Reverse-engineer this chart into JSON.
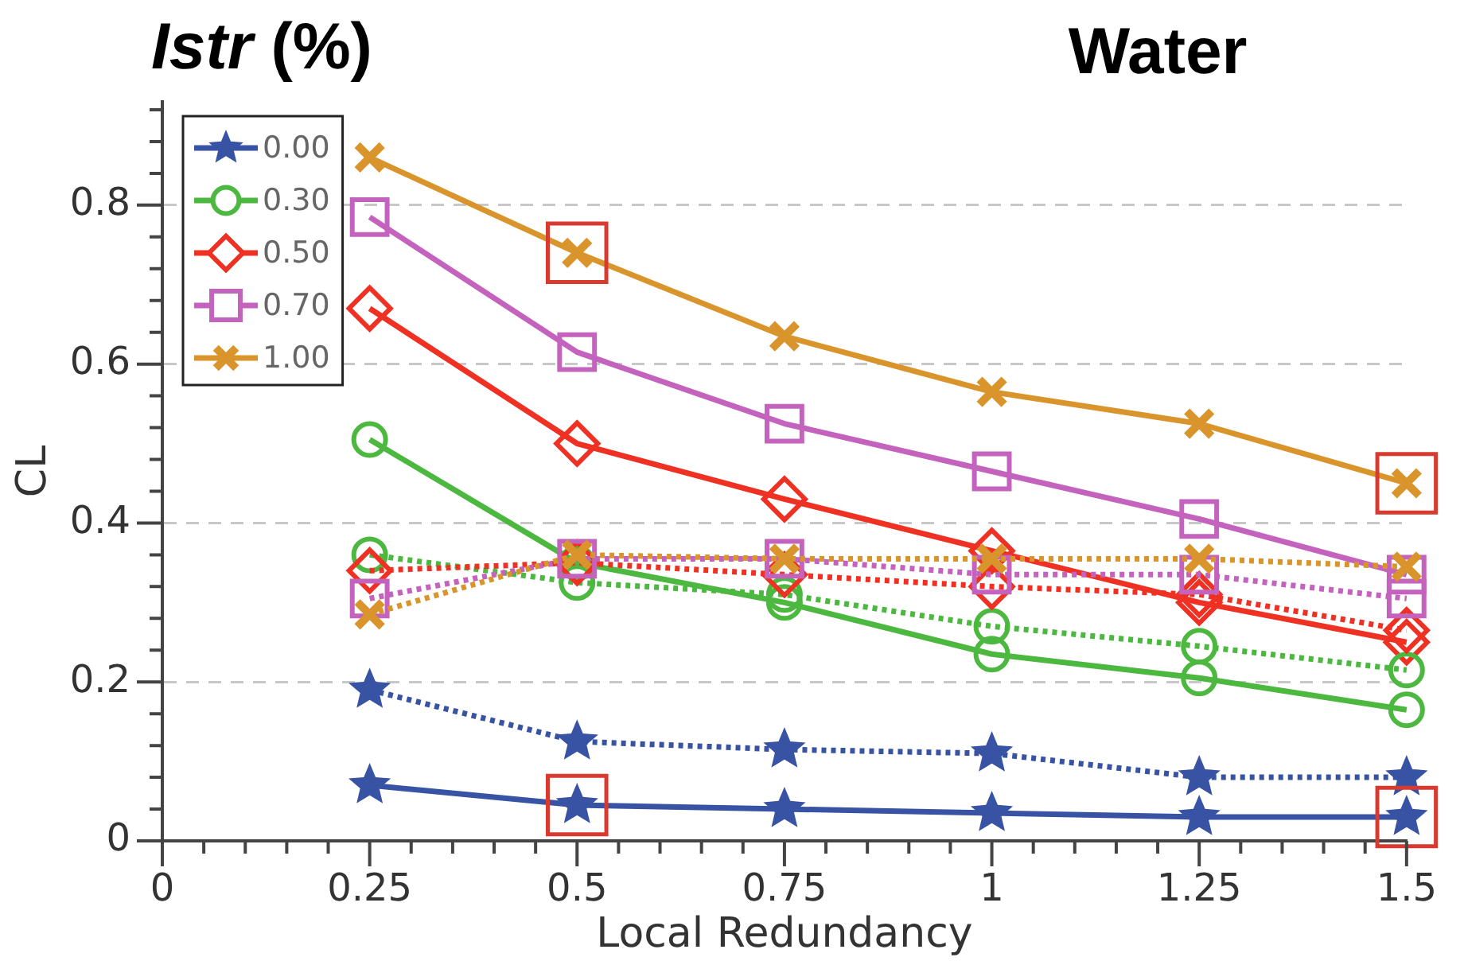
{
  "chart_data": {
    "type": "line",
    "title": "Water",
    "legend_title": "Istr (%)",
    "xlabel": "Local Redundancy",
    "ylabel": "CL",
    "x": [
      0.25,
      0.5,
      0.75,
      1,
      1.25,
      1.5
    ],
    "xlim": [
      0,
      1.5
    ],
    "xticks": [
      0,
      {
        "value": 0.05,
        "label": null
      },
      {
        "value": 0.1,
        "label": null
      },
      {
        "value": 0.15,
        "label": null
      },
      {
        "value": 0.2,
        "label": null
      },
      0.25,
      {
        "value": 0.3,
        "label": null
      },
      {
        "value": 0.35,
        "label": null
      },
      {
        "value": 0.4,
        "label": null
      },
      {
        "value": 0.45,
        "label": null
      },
      0.5,
      {
        "value": 0.55,
        "label": null
      },
      {
        "value": 0.6,
        "label": null
      },
      {
        "value": 0.65,
        "label": null
      },
      {
        "value": 0.7,
        "label": null
      },
      0.75,
      {
        "value": 0.8,
        "label": null
      },
      {
        "value": 0.85,
        "label": null
      },
      {
        "value": 0.9,
        "label": null
      },
      {
        "value": 0.95,
        "label": null
      },
      1,
      {
        "value": 1.05,
        "label": null
      },
      {
        "value": 1.1,
        "label": null
      },
      {
        "value": 1.15,
        "label": null
      },
      {
        "value": 1.2,
        "label": null
      },
      1.25,
      {
        "value": 1.3,
        "label": null
      },
      {
        "value": 1.35,
        "label": null
      },
      {
        "value": 1.4,
        "label": null
      },
      {
        "value": 1.45,
        "label": null
      },
      1.5
    ],
    "ylim": [
      0,
      0.93
    ],
    "yticks": [
      0,
      {
        "value": 0.04,
        "label": null
      },
      {
        "value": 0.08,
        "label": null
      },
      {
        "value": 0.12,
        "label": null
      },
      {
        "value": 0.16,
        "label": null
      },
      0.2,
      {
        "value": 0.24,
        "label": null
      },
      {
        "value": 0.28,
        "label": null
      },
      {
        "value": 0.32,
        "label": null
      },
      {
        "value": 0.36,
        "label": null
      },
      0.4,
      {
        "value": 0.44,
        "label": null
      },
      {
        "value": 0.48,
        "label": null
      },
      {
        "value": 0.52,
        "label": null
      },
      {
        "value": 0.56,
        "label": null
      },
      0.6,
      {
        "value": 0.64,
        "label": null
      },
      {
        "value": 0.68,
        "label": null
      },
      {
        "value": 0.72,
        "label": null
      },
      {
        "value": 0.76,
        "label": null
      },
      0.8,
      {
        "value": 0.84,
        "label": null
      },
      {
        "value": 0.88,
        "label": null
      },
      {
        "value": 0.92,
        "label": null
      }
    ],
    "grid": "y",
    "legend": "top left",
    "series": [
      {
        "name": "0.00",
        "color": "#3953a4",
        "marker": "star",
        "line_style": "solid",
        "values": [
          0.07,
          0.045,
          0.04,
          0.035,
          0.03,
          0.03
        ]
      },
      {
        "name": "0.30",
        "color": "#4cb840",
        "marker": "circle",
        "line_style": "solid",
        "values": [
          0.505,
          0.35,
          0.3,
          0.235,
          0.205,
          0.165
        ]
      },
      {
        "name": "0.50",
        "color": "#ef3124",
        "marker": "diamond",
        "line_style": "solid",
        "values": [
          0.67,
          0.5,
          0.43,
          0.365,
          0.3,
          0.25
        ]
      },
      {
        "name": "0.70",
        "color": "#c463bd",
        "marker": "square",
        "line_style": "solid",
        "values": [
          0.785,
          0.615,
          0.525,
          0.465,
          0.405,
          0.335
        ]
      },
      {
        "name": "1.00",
        "color": "#d9952b",
        "marker": "cross",
        "line_style": "solid",
        "values": [
          0.86,
          0.74,
          0.635,
          0.565,
          0.525,
          0.45
        ]
      },
      {
        "color": "#3953a4",
        "marker": "star",
        "line_style": "dotted",
        "values": [
          0.19,
          0.125,
          0.115,
          0.11,
          0.08,
          0.08
        ]
      },
      {
        "color": "#4cb840",
        "marker": "circle",
        "line_style": "dotted",
        "values": [
          0.36,
          0.325,
          0.31,
          0.27,
          0.245,
          0.215
        ]
      },
      {
        "color": "#ef3124",
        "marker": "diamond",
        "line_style": "dotted",
        "values": [
          0.34,
          0.35,
          0.335,
          0.32,
          0.31,
          0.265
        ]
      },
      {
        "color": "#c463bd",
        "marker": "square",
        "line_style": "dotted",
        "values": [
          0.305,
          0.355,
          0.355,
          0.335,
          0.335,
          0.305
        ]
      },
      {
        "color": "#d9952b",
        "marker": "cross",
        "line_style": "dotted",
        "values": [
          0.285,
          0.36,
          0.355,
          0.355,
          0.355,
          0.345
        ]
      },
      {
        "type": "scatter",
        "color": "#d93a30",
        "marker": "square",
        "values": [
          null,
          0.74,
          null,
          null,
          null,
          0.45
        ]
      },
      {
        "type": "scatter",
        "color": "#d93a30",
        "marker": "square",
        "values": [
          null,
          0.045,
          null,
          null,
          null,
          0.03
        ]
      }
    ]
  }
}
